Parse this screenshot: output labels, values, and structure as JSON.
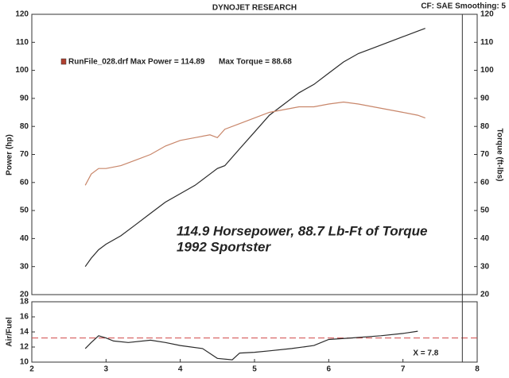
{
  "chart_data": [
    {
      "type": "line",
      "title": "DYNOJET RESEARCH",
      "subtitle": "CF: SAE  Smoothing: 5",
      "ylabel": "Power (hp)",
      "y2label": "Torque (ft-lbs)",
      "legend_texts": [
        "RunFile_028.drf Max Power = 114.89",
        "Max Torque = 88.68"
      ],
      "annotations": [
        "114.9 Horsepower, 88.7 Lb-Ft of Torque",
        "1992 Sportster"
      ],
      "xlim": [
        2,
        8
      ],
      "ylim": [
        20,
        120
      ],
      "yticks": [
        20,
        30,
        40,
        50,
        60,
        70,
        80,
        90,
        100,
        110,
        120
      ],
      "y2lim": [
        20,
        120
      ],
      "y2ticks": [
        20,
        30,
        40,
        50,
        60,
        70,
        80,
        90,
        100,
        110,
        120
      ],
      "x": [
        2.72,
        2.8,
        2.9,
        3.0,
        3.2,
        3.4,
        3.6,
        3.8,
        4.0,
        4.2,
        4.4,
        4.5,
        4.6,
        4.8,
        5.0,
        5.2,
        5.4,
        5.6,
        5.8,
        6.0,
        6.2,
        6.4,
        6.6,
        6.8,
        7.0,
        7.2,
        7.3
      ],
      "series": [
        {
          "color": "#2a2a2a",
          "axis": "y",
          "values": [
            30,
            33,
            36,
            38,
            41,
            45,
            49,
            53,
            56,
            59,
            63,
            65,
            66,
            72,
            78,
            84,
            88,
            92,
            95,
            99,
            103,
            106,
            108,
            110,
            112,
            114,
            115
          ]
        },
        {
          "color": "#c8866a",
          "axis": "y2",
          "values": [
            59,
            63,
            65,
            65,
            66,
            68,
            70,
            73,
            75,
            76,
            77,
            76,
            79,
            81,
            83,
            85,
            86,
            87,
            87,
            88,
            88.7,
            88,
            87,
            86,
            85,
            84,
            83
          ]
        }
      ]
    },
    {
      "type": "line",
      "ylabel": "Air/Fuel",
      "xlim": [
        2,
        8
      ],
      "xticks": [
        2,
        3,
        4,
        5,
        6,
        7,
        8
      ],
      "ylim": [
        10,
        18
      ],
      "yticks": [
        10,
        12,
        14,
        16,
        18
      ],
      "reference_line": {
        "value": 13.2,
        "color": "#d04848"
      },
      "cursor": {
        "value": 7.8,
        "label": "X = 7.8"
      },
      "x": [
        2.72,
        2.8,
        2.9,
        3.0,
        3.1,
        3.3,
        3.6,
        3.8,
        4.0,
        4.3,
        4.5,
        4.7,
        4.8,
        5.0,
        5.2,
        5.5,
        5.8,
        6.0,
        6.3,
        6.7,
        7.0,
        7.2
      ],
      "series": [
        {
          "color": "#2a2a2a",
          "values": [
            11.8,
            12.6,
            13.5,
            13.2,
            12.8,
            12.6,
            12.9,
            12.6,
            12.2,
            11.8,
            10.5,
            10.3,
            11.2,
            11.3,
            11.5,
            11.8,
            12.2,
            13.0,
            13.2,
            13.5,
            13.8,
            14.1
          ]
        }
      ]
    }
  ]
}
